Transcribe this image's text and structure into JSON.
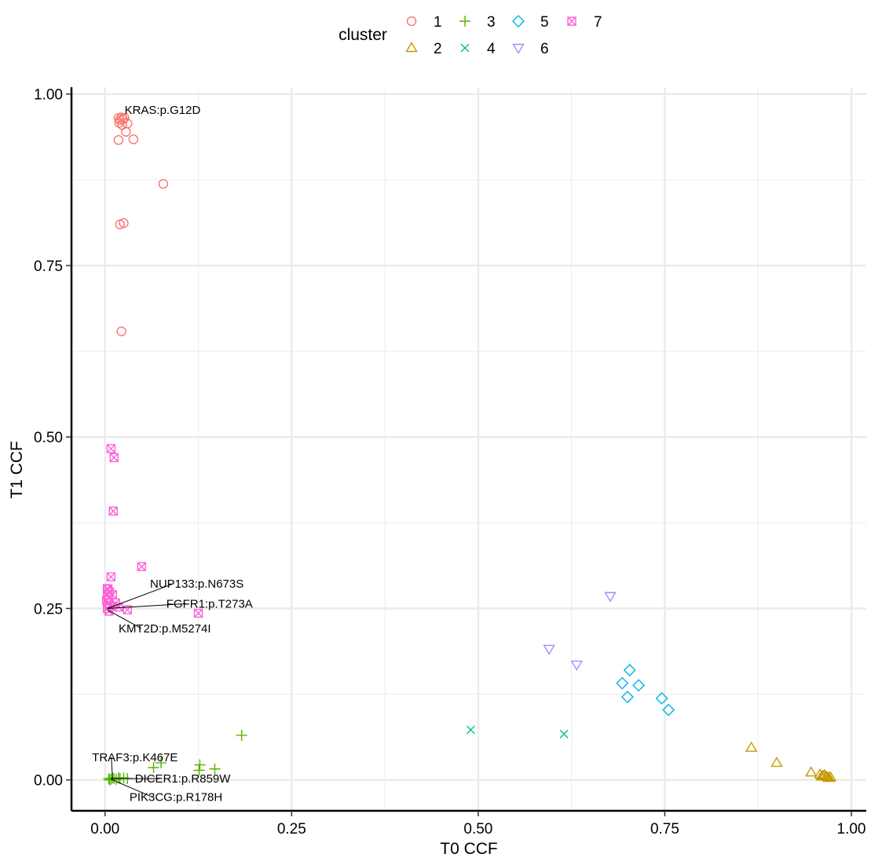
{
  "chart_data": {
    "type": "scatter",
    "title": "",
    "xlabel": "T0 CCF",
    "ylabel": "T1 CCF",
    "xlim": [
      -0.045,
      1.02
    ],
    "ylim": [
      -0.045,
      1.01
    ],
    "xticks": [
      0.0,
      0.25,
      0.5,
      0.75,
      1.0
    ],
    "xtick_labels": [
      "0.00",
      "0.25",
      "0.50",
      "0.75",
      "1.00"
    ],
    "yticks": [
      0.0,
      0.25,
      0.5,
      0.75,
      1.0
    ],
    "ytick_labels": [
      "0.00",
      "0.25",
      "0.50",
      "0.75",
      "1.00"
    ],
    "grid": true,
    "legend": {
      "title": "cluster",
      "position": "top",
      "entries": [
        "1",
        "2",
        "3",
        "4",
        "5",
        "6",
        "7"
      ]
    },
    "series": [
      {
        "name": "1",
        "color": "#F8766D",
        "shape": "circle",
        "points": [
          [
            0.018,
            0.965
          ],
          [
            0.02,
            0.962
          ],
          [
            0.022,
            0.966
          ],
          [
            0.024,
            0.963
          ],
          [
            0.026,
            0.965
          ],
          [
            0.019,
            0.958
          ],
          [
            0.023,
            0.955
          ],
          [
            0.03,
            0.957
          ],
          [
            0.028,
            0.945
          ],
          [
            0.018,
            0.933
          ],
          [
            0.038,
            0.934
          ],
          [
            0.078,
            0.869
          ],
          [
            0.02,
            0.81
          ],
          [
            0.025,
            0.812
          ],
          [
            0.022,
            0.654
          ]
        ]
      },
      {
        "name": "2",
        "color": "#C49A00",
        "shape": "triangle",
        "points": [
          [
            0.866,
            0.047
          ],
          [
            0.9,
            0.025
          ],
          [
            0.946,
            0.011
          ],
          [
            0.958,
            0.008
          ],
          [
            0.962,
            0.006
          ],
          [
            0.966,
            0.005
          ],
          [
            0.968,
            0.004
          ],
          [
            0.97,
            0.003
          ],
          [
            0.964,
            0.007
          ],
          [
            0.972,
            0.004
          ],
          [
            0.96,
            0.005
          ]
        ]
      },
      {
        "name": "3",
        "color": "#53B400",
        "shape": "plus",
        "points": [
          [
            0.183,
            0.065
          ],
          [
            0.075,
            0.025
          ],
          [
            0.127,
            0.022
          ],
          [
            0.147,
            0.016
          ],
          [
            0.126,
            0.014
          ],
          [
            0.065,
            0.018
          ],
          [
            0.005,
            0.002
          ],
          [
            0.008,
            0.001
          ],
          [
            0.01,
            0.003
          ],
          [
            0.012,
            0.002
          ],
          [
            0.015,
            0.001
          ],
          [
            0.018,
            0.003
          ],
          [
            0.02,
            0.002
          ],
          [
            0.006,
            0.0
          ],
          [
            0.025,
            0.003
          ],
          [
            0.03,
            0.002
          ]
        ]
      },
      {
        "name": "4",
        "color": "#00C094",
        "shape": "cross",
        "points": [
          [
            0.49,
            0.073
          ],
          [
            0.615,
            0.067
          ]
        ]
      },
      {
        "name": "5",
        "color": "#00B6EB",
        "shape": "diamond",
        "points": [
          [
            0.703,
            0.16
          ],
          [
            0.693,
            0.141
          ],
          [
            0.715,
            0.138
          ],
          [
            0.7,
            0.121
          ],
          [
            0.746,
            0.119
          ],
          [
            0.755,
            0.102
          ]
        ]
      },
      {
        "name": "6",
        "color": "#A58AFF",
        "shape": "triangle-down",
        "points": [
          [
            0.677,
            0.268
          ],
          [
            0.595,
            0.191
          ],
          [
            0.632,
            0.168
          ]
        ]
      },
      {
        "name": "7",
        "color": "#FB61D7",
        "shape": "square-cross",
        "points": [
          [
            0.008,
            0.483
          ],
          [
            0.012,
            0.47
          ],
          [
            0.011,
            0.392
          ],
          [
            0.049,
            0.311
          ],
          [
            0.008,
            0.296
          ],
          [
            0.004,
            0.278
          ],
          [
            0.006,
            0.274
          ],
          [
            0.003,
            0.27
          ],
          [
            0.005,
            0.266
          ],
          [
            0.002,
            0.262
          ],
          [
            0.004,
            0.258
          ],
          [
            0.006,
            0.254
          ],
          [
            0.003,
            0.25
          ],
          [
            0.005,
            0.246
          ],
          [
            0.002,
            0.262
          ],
          [
            0.003,
            0.279
          ],
          [
            0.014,
            0.258
          ],
          [
            0.018,
            0.252
          ],
          [
            0.03,
            0.248
          ],
          [
            0.125,
            0.243
          ],
          [
            0.01,
            0.27
          ]
        ]
      }
    ],
    "annotations": [
      {
        "text": "KRAS:p.G12D",
        "point": [
          0.02,
          0.965
        ],
        "label_at": [
          0.077,
          0.977
        ],
        "leader": false
      },
      {
        "text": "NUP133:p.N673S",
        "point": [
          0.003,
          0.25
        ],
        "label_at": [
          0.123,
          0.286
        ],
        "leader": true
      },
      {
        "text": "FGFR1:p.T273A",
        "point": [
          0.003,
          0.25
        ],
        "label_at": [
          0.14,
          0.257
        ],
        "leader": true
      },
      {
        "text": "KMT2D:p.M5274I",
        "point": [
          0.003,
          0.248
        ],
        "label_at": [
          0.08,
          0.221
        ],
        "leader": true
      },
      {
        "text": "TRAF3:p.K467E",
        "point": [
          0.01,
          0.002
        ],
        "label_at": [
          0.04,
          0.033
        ],
        "leader": true
      },
      {
        "text": "DICER1:p.R859W",
        "point": [
          0.008,
          0.002
        ],
        "label_at": [
          0.104,
          0.002
        ],
        "leader": true
      },
      {
        "text": "PIK3CG:p.R178H",
        "point": [
          0.008,
          0.001
        ],
        "label_at": [
          0.095,
          -0.025
        ],
        "leader": true
      }
    ]
  }
}
